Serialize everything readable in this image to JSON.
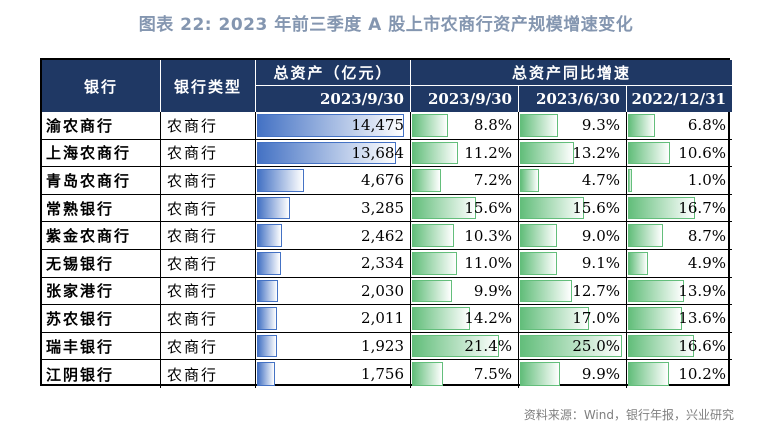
{
  "title": "图表 22: 2023 年前三季度 A 股上市农商行资产规模增速变化",
  "source": "资料来源：Wind，银行年报，兴业研究",
  "headers": {
    "bank": "银行",
    "bank_type": "银行类型",
    "total_assets": "总资产（亿元）",
    "growth": "总资产同比增速",
    "total_assets_date": "2023/9/30",
    "growth_dates": [
      "2023/9/30",
      "2023/6/30",
      "2022/12/31"
    ]
  },
  "chart_data": {
    "type": "table",
    "title": "图表 22: 2023 年前三季度 A 股上市农商行资产规模增速变化",
    "columns": [
      "银行",
      "银行类型",
      "总资产（亿元） 2023/9/30",
      "总资产同比增速 2023/9/30",
      "总资产同比增速 2023/6/30",
      "总资产同比增速 2022/12/31"
    ],
    "banks": [
      "渝农商行",
      "上海农商行",
      "青岛农商行",
      "常熟银行",
      "紫金农商行",
      "无锡银行",
      "张家港行",
      "苏农银行",
      "瑞丰银行",
      "江阴银行"
    ],
    "bank_types": [
      "农商行",
      "农商行",
      "农商行",
      "农商行",
      "农商行",
      "农商行",
      "农商行",
      "农商行",
      "农商行",
      "农商行"
    ],
    "total_assets": [
      14475,
      13684,
      4676,
      3285,
      2462,
      2334,
      2030,
      2011,
      1923,
      1756
    ],
    "total_assets_text": [
      "14,475",
      "13,684",
      "4,676",
      "3,285",
      "2,462",
      "2,334",
      "2,030",
      "2,011",
      "1,923",
      "1,756"
    ],
    "growth_2023_09_30": [
      8.8,
      11.2,
      7.2,
      15.6,
      10.3,
      11.0,
      9.9,
      14.2,
      21.4,
      7.5
    ],
    "growth_2023_06_30": [
      9.3,
      13.2,
      4.7,
      15.6,
      9.0,
      9.1,
      12.7,
      17.0,
      25.0,
      9.9
    ],
    "growth_2022_12_31": [
      6.8,
      10.6,
      1.0,
      16.7,
      8.7,
      4.9,
      13.9,
      13.6,
      16.6,
      10.2
    ],
    "growth_unit": "%",
    "colors": {
      "header_bg": "#1f3864",
      "asset_bar": "#4472c4",
      "growth_bar": "#63be7b",
      "title": "#8496b0"
    }
  }
}
